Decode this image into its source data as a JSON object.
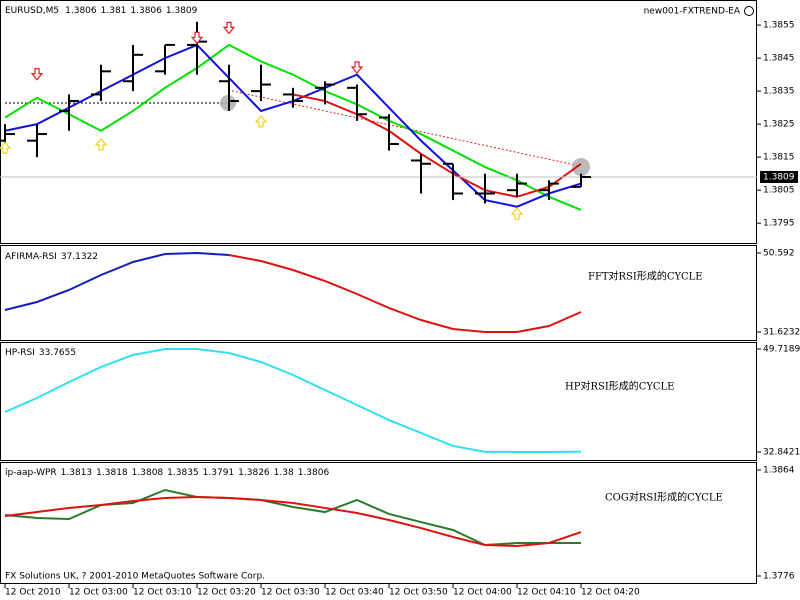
{
  "chart_data": [
    {
      "type": "ohlc",
      "title": "EURUSD,M5",
      "label": "new001-FXTREND-EA",
      "ylim": [
        1.3789,
        1.3862
      ],
      "yticks": [
        1.3855,
        1.3845,
        1.3835,
        1.3825,
        1.3815,
        1.3805,
        1.3795
      ],
      "bar_color": "#000000",
      "open": [
        1.382,
        1.382,
        1.3829,
        1.3834,
        1.3838,
        1.3841,
        1.3849,
        1.3838,
        1.3835,
        1.3834,
        1.3836,
        1.3836,
        1.3827,
        1.3814,
        1.3813,
        1.3804,
        1.3805,
        1.3805,
        1.3806
      ],
      "high": [
        1.3825,
        1.3825,
        1.3834,
        1.3843,
        1.3849,
        1.3849,
        1.3856,
        1.3843,
        1.3843,
        1.3836,
        1.3838,
        1.3837,
        1.3828,
        1.3816,
        1.3813,
        1.381,
        1.381,
        1.3808,
        1.381
      ],
      "low": [
        1.3817,
        1.3815,
        1.3823,
        1.3832,
        1.3835,
        1.384,
        1.384,
        1.3829,
        1.3832,
        1.383,
        1.3831,
        1.3826,
        1.3817,
        1.3804,
        1.3802,
        1.3801,
        1.3803,
        1.3802,
        1.3806
      ],
      "close": [
        1.3822,
        1.3822,
        1.3832,
        1.3841,
        1.3846,
        1.3849,
        1.385,
        1.3832,
        1.3837,
        1.3832,
        1.3837,
        1.3828,
        1.3819,
        1.3813,
        1.3804,
        1.3804,
        1.3807,
        1.3807,
        1.3809
      ],
      "series": [
        {
          "color": "#00e000",
          "values": [
            1.3827,
            1.3833,
            1.3828,
            1.3823,
            1.3829,
            1.3836,
            1.3842,
            1.3849,
            1.3844,
            1.384,
            1.3835,
            1.3831,
            1.3826,
            1.3822,
            1.3817,
            1.3812,
            1.3808,
            1.3803,
            1.3799
          ]
        },
        {
          "color": "#1010e0",
          "values": [
            1.3823,
            1.3825,
            1.383,
            1.3835,
            1.384,
            1.3845,
            1.3849,
            1.3839,
            1.3829,
            1.3832,
            1.3836,
            1.384,
            1.383,
            1.382,
            1.3811,
            1.3802,
            1.38,
            1.3804,
            1.3807
          ]
        },
        {
          "color": "#e01010",
          "values": [
            null,
            null,
            null,
            null,
            null,
            null,
            null,
            null,
            null,
            1.3834,
            1.3832,
            1.3828,
            1.3823,
            1.3816,
            1.381,
            1.3805,
            1.3803,
            1.3806,
            1.3813
          ]
        }
      ],
      "down_arrows": {
        "color": "#e02020",
        "values": [
          null,
          1.384,
          null,
          null,
          null,
          null,
          1.3851,
          1.3854,
          null,
          null,
          null,
          1.3842,
          null,
          null,
          null,
          null,
          null,
          null,
          null
        ]
      },
      "up_arrows": {
        "color": "#f0d020",
        "values": [
          1.3818,
          null,
          null,
          1.3819,
          null,
          null,
          null,
          null,
          1.3826,
          null,
          null,
          null,
          null,
          null,
          null,
          null,
          1.3798,
          null,
          null
        ]
      }
    },
    {
      "type": "line",
      "title": "AFIRMA-RSI",
      "current": 37.1322,
      "annotation": "FFT对RSI形成的CYCLE",
      "ylim": [
        31.6232,
        50.592
      ],
      "yticks": [
        50.592,
        31.6232
      ],
      "series": [
        {
          "color": "#1020c0",
          "values": [
            36.91,
            38.83,
            41.71,
            45.31,
            48.43,
            50.35,
            50.59,
            50.11,
            null,
            null,
            null,
            null,
            null,
            null,
            null,
            null,
            null,
            null,
            null
          ]
        },
        {
          "color": "#e01010",
          "values": [
            null,
            null,
            null,
            null,
            null,
            null,
            null,
            50.11,
            48.67,
            46.51,
            43.87,
            40.75,
            37.39,
            34.5,
            32.34,
            31.63,
            31.63,
            33.06,
            36.43
          ]
        }
      ]
    },
    {
      "type": "line",
      "title": "HP-RSI",
      "current": 33.7655,
      "annotation": "HP对RSI形成的CYCLE",
      "ylim": [
        32.8421,
        49.7189
      ],
      "yticks": [
        49.7189,
        32.8421
      ],
      "series": [
        {
          "color": "#30e0f0",
          "values": [
            39.4,
            41.69,
            44.31,
            46.77,
            48.74,
            49.72,
            49.72,
            49.06,
            47.59,
            45.46,
            43.0,
            40.54,
            38.08,
            35.96,
            33.83,
            32.86,
            32.85,
            32.85,
            32.9
          ]
        }
      ]
    },
    {
      "type": "line",
      "title": "ip-aap-WPR",
      "header_values": [
        1.3813,
        1.3818,
        1.3808,
        1.3835,
        1.3791,
        1.3826,
        1.38,
        1.3806
      ],
      "annotation": "COG对RSI形成的CYCLE",
      "ylim": [
        1.3776,
        1.3864
      ],
      "yticks": [
        1.3864,
        1.3776
      ],
      "series": [
        {
          "color": "#2a7a2a",
          "values": [
            1.38266,
            1.38242,
            1.38233,
            1.38349,
            1.38366,
            1.38474,
            1.38416,
            1.38408,
            1.38391,
            1.38333,
            1.38291,
            1.38391,
            1.38275,
            1.38208,
            1.38142,
            1.38017,
            1.38034,
            1.38034,
            1.38034
          ]
        },
        {
          "color": "#e01010",
          "values": [
            1.38258,
            1.38291,
            1.38325,
            1.38349,
            1.38383,
            1.38408,
            1.38416,
            1.38408,
            1.38391,
            1.38366,
            1.38325,
            1.38283,
            1.38225,
            1.38158,
            1.38084,
            1.38017,
            1.38009,
            1.38034,
            1.38125
          ]
        }
      ]
    }
  ],
  "x_axis_labels": [
    "12 Oct 2010",
    "12 Oct 03:00",
    "12 Oct 03:10",
    "12 Oct 03:20",
    "12 Oct 03:30",
    "12 Oct 03:40",
    "12 Oct 03:50",
    "12 Oct 04:00",
    "12 Oct 04:10",
    "12 Oct 04:20"
  ],
  "footer": "FX Solutions UK, ? 2001-2010 MetaQuotes Software Corp."
}
